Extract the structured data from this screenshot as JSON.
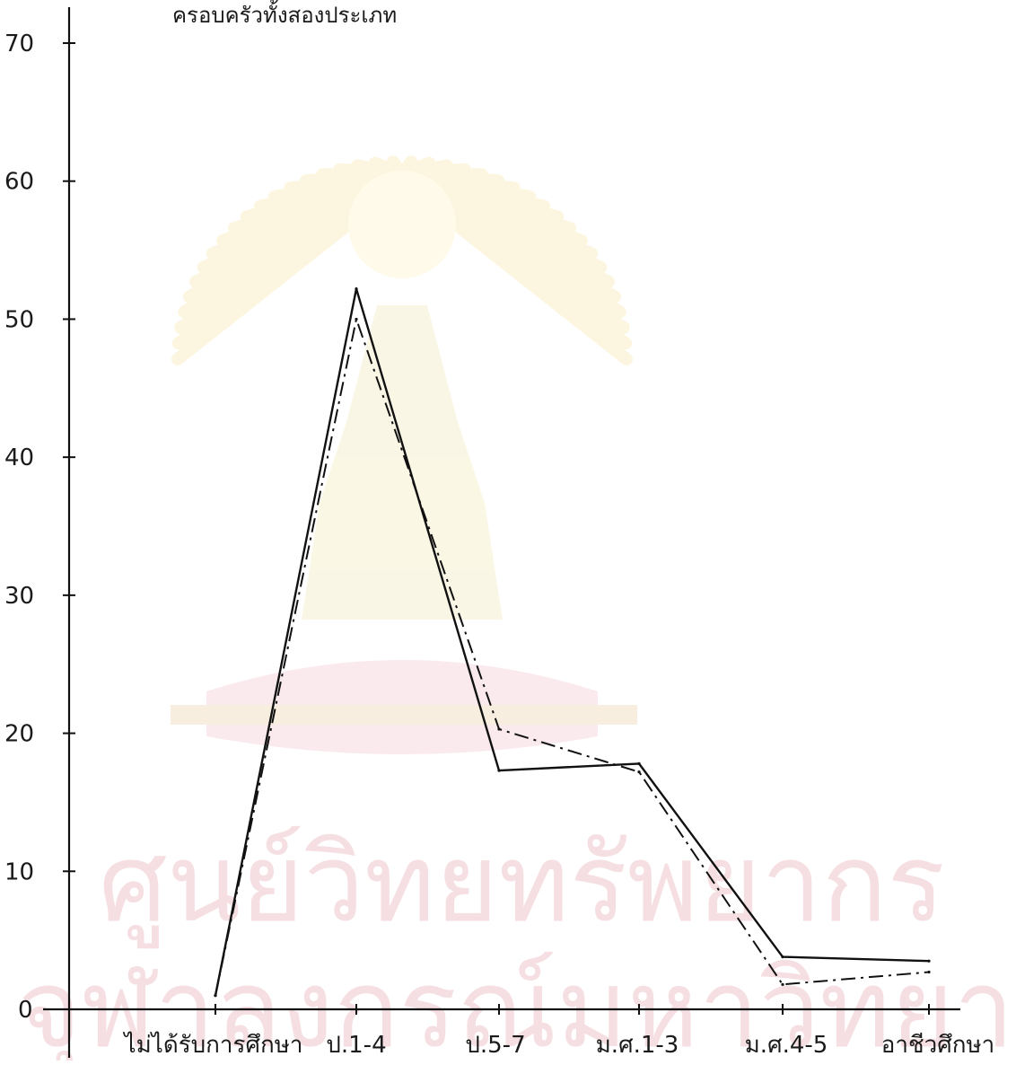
{
  "chart_data": {
    "type": "line",
    "title": "ครอบครัวทั้งสองประเภท",
    "xlabel": "",
    "ylabel": "",
    "ylim": [
      0,
      70
    ],
    "yticks": [
      0,
      10,
      20,
      30,
      40,
      50,
      60,
      70
    ],
    "categories": [
      "ไม่ได้รับการศึกษา",
      "ป.1-4",
      "ป.5-7",
      "ม.ศ.1-3",
      "ม.ศ.4-5",
      "อาชีวศึกษา"
    ],
    "series": [
      {
        "style": "solid",
        "color": "#111111",
        "values": [
          1,
          52.2,
          17.3,
          17.8,
          3.8,
          3.5
        ]
      },
      {
        "style": "dash-dot",
        "color": "#111111",
        "values": [
          1,
          50,
          20.3,
          17.2,
          1.8,
          2.7
        ]
      }
    ],
    "grid": false,
    "legend": "none"
  },
  "watermark": {
    "line1": "ศูนย์วิทยทรัพยากร",
    "line2": "จุฬาลงกรณ์มหาวิทยาลัย"
  }
}
